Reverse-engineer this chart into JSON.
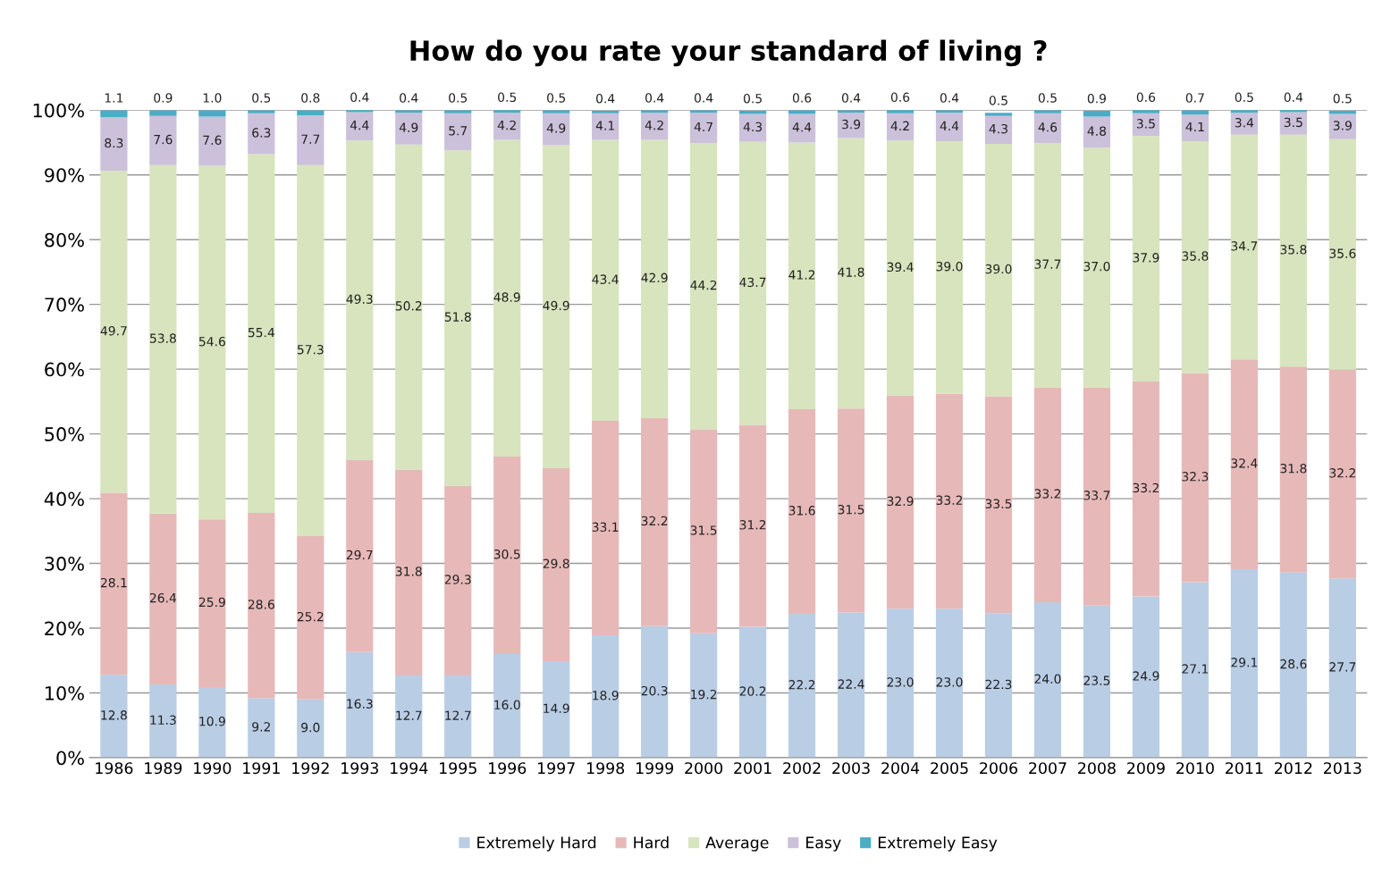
{
  "chart_data": {
    "type": "bar",
    "title": "How do you rate your standard of living ?",
    "stacked": true,
    "grid": "y",
    "legend": "bottom",
    "categories": [
      "1986",
      "1989",
      "1990",
      "1991",
      "1992",
      "1993",
      "1994",
      "1995",
      "1996",
      "1997",
      "1998",
      "1999",
      "2000",
      "2001",
      "2002",
      "2003",
      "2004",
      "2005",
      "2006",
      "2007",
      "2008",
      "2009",
      "2010",
      "2011",
      "2012",
      "2013"
    ],
    "ylim": [
      0,
      100
    ],
    "yticks": [
      {
        "value": 0,
        "label": "0%"
      },
      {
        "value": 10,
        "label": "10%"
      },
      {
        "value": 20,
        "label": "20%"
      },
      {
        "value": 30,
        "label": "30%"
      },
      {
        "value": 40,
        "label": "40%"
      },
      {
        "value": 50,
        "label": "50%"
      },
      {
        "value": 60,
        "label": "60%"
      },
      {
        "value": 70,
        "label": "70%"
      },
      {
        "value": 80,
        "label": "80%"
      },
      {
        "value": 90,
        "label": "90%"
      },
      {
        "value": 100,
        "label": "100%"
      }
    ],
    "series": [
      {
        "name": "Extremely Hard",
        "color": "#b9cde5",
        "values": [
          12.8,
          11.3,
          10.9,
          9.2,
          9.0,
          16.3,
          12.7,
          12.7,
          16.0,
          14.9,
          18.9,
          20.3,
          19.2,
          20.2,
          22.2,
          22.4,
          23.0,
          23.0,
          22.3,
          24.0,
          23.5,
          24.9,
          27.1,
          29.1,
          28.6,
          27.7
        ],
        "value_labels": [
          "12.8",
          "11.3",
          "10.9",
          "9.2",
          "9.0",
          "16.3",
          "12.7",
          "12.7",
          "16.0",
          "14.9",
          "18.9",
          "20.3",
          "19.2",
          "20.2",
          "22.2",
          "22.4",
          "23.0",
          "23.0",
          "22.3",
          "24.0",
          "23.5",
          "24.9",
          "27.1",
          "29.1",
          "28.6",
          "27.7"
        ]
      },
      {
        "name": "Hard",
        "color": "#e6b9b8",
        "values": [
          28.1,
          26.4,
          25.9,
          28.6,
          25.2,
          29.7,
          31.8,
          29.3,
          30.5,
          29.8,
          33.1,
          32.2,
          31.5,
          31.2,
          31.6,
          31.5,
          32.9,
          33.2,
          33.5,
          33.2,
          33.7,
          33.2,
          32.3,
          32.4,
          31.8,
          32.2
        ],
        "value_labels": [
          "28.1",
          "26.4",
          "25.9",
          "28.6",
          "25.2",
          "29.7",
          "31.8",
          "29.3",
          "30.5",
          "29.8",
          "33.1",
          "32.2",
          "31.5",
          "31.2",
          "31.6",
          "31.5",
          "32.9",
          "33.2",
          "33.5",
          "33.2",
          "33.7",
          "33.2",
          "32.3",
          "32.4",
          "31.8",
          "32.2"
        ]
      },
      {
        "name": "Average",
        "color": "#d7e4bd",
        "values": [
          49.7,
          53.8,
          54.6,
          55.4,
          57.3,
          49.3,
          50.2,
          51.8,
          48.9,
          49.9,
          43.4,
          42.9,
          44.2,
          43.7,
          41.2,
          41.8,
          39.4,
          39.0,
          39.0,
          37.7,
          37.0,
          37.9,
          35.8,
          34.7,
          35.8,
          35.6
        ],
        "value_labels": [
          "49.7",
          "53.8",
          "54.6",
          "55.4",
          "57.3",
          "49.3",
          "50.2",
          "51.8",
          "48.9",
          "49.9",
          "43.4",
          "42.9",
          "44.2",
          "43.7",
          "41.2",
          "41.8",
          "39.4",
          "39.0",
          "39.0",
          "37.7",
          "37.0",
          "37.9",
          "35.8",
          "34.7",
          "35.8",
          "35.6"
        ]
      },
      {
        "name": "Easy",
        "color": "#ccc1da",
        "values": [
          8.3,
          7.6,
          7.6,
          6.3,
          7.7,
          4.4,
          4.9,
          5.7,
          4.2,
          4.9,
          4.1,
          4.2,
          4.7,
          4.3,
          4.4,
          3.9,
          4.2,
          4.4,
          4.3,
          4.6,
          4.8,
          3.5,
          4.1,
          3.4,
          3.5,
          3.9
        ],
        "value_labels": [
          "8.3",
          "7.6",
          "7.6",
          "6.3",
          "7.7",
          "4.4",
          "4.9",
          "5.7",
          "4.2",
          "4.9",
          "4.1",
          "4.2",
          "4.7",
          "4.3",
          "4.4",
          "3.9",
          "4.2",
          "4.4",
          "4.3",
          "4.6",
          "4.8",
          "3.5",
          "4.1",
          "3.4",
          "3.5",
          "3.9"
        ]
      },
      {
        "name": "Extremely Easy",
        "color": "#4bacc6",
        "values": [
          1.1,
          0.9,
          1.0,
          0.5,
          0.8,
          0.4,
          0.4,
          0.5,
          0.5,
          0.5,
          0.4,
          0.4,
          0.4,
          0.5,
          0.6,
          0.4,
          0.6,
          0.4,
          0.5,
          0.5,
          0.9,
          0.6,
          0.7,
          0.5,
          0.4,
          0.5
        ],
        "value_labels": [
          "1.1",
          "0.9",
          "1.0",
          "0.5",
          "0.8",
          "0.4",
          "0.4",
          "0.5",
          "0.5",
          "0.5",
          "0.4",
          "0.4",
          "0.4",
          "0.5",
          "0.6",
          "0.4",
          "0.6",
          "0.4",
          "0.5",
          "0.5",
          "0.9",
          "0.6",
          "0.7",
          "0.5",
          "0.4",
          "0.5"
        ]
      }
    ]
  }
}
